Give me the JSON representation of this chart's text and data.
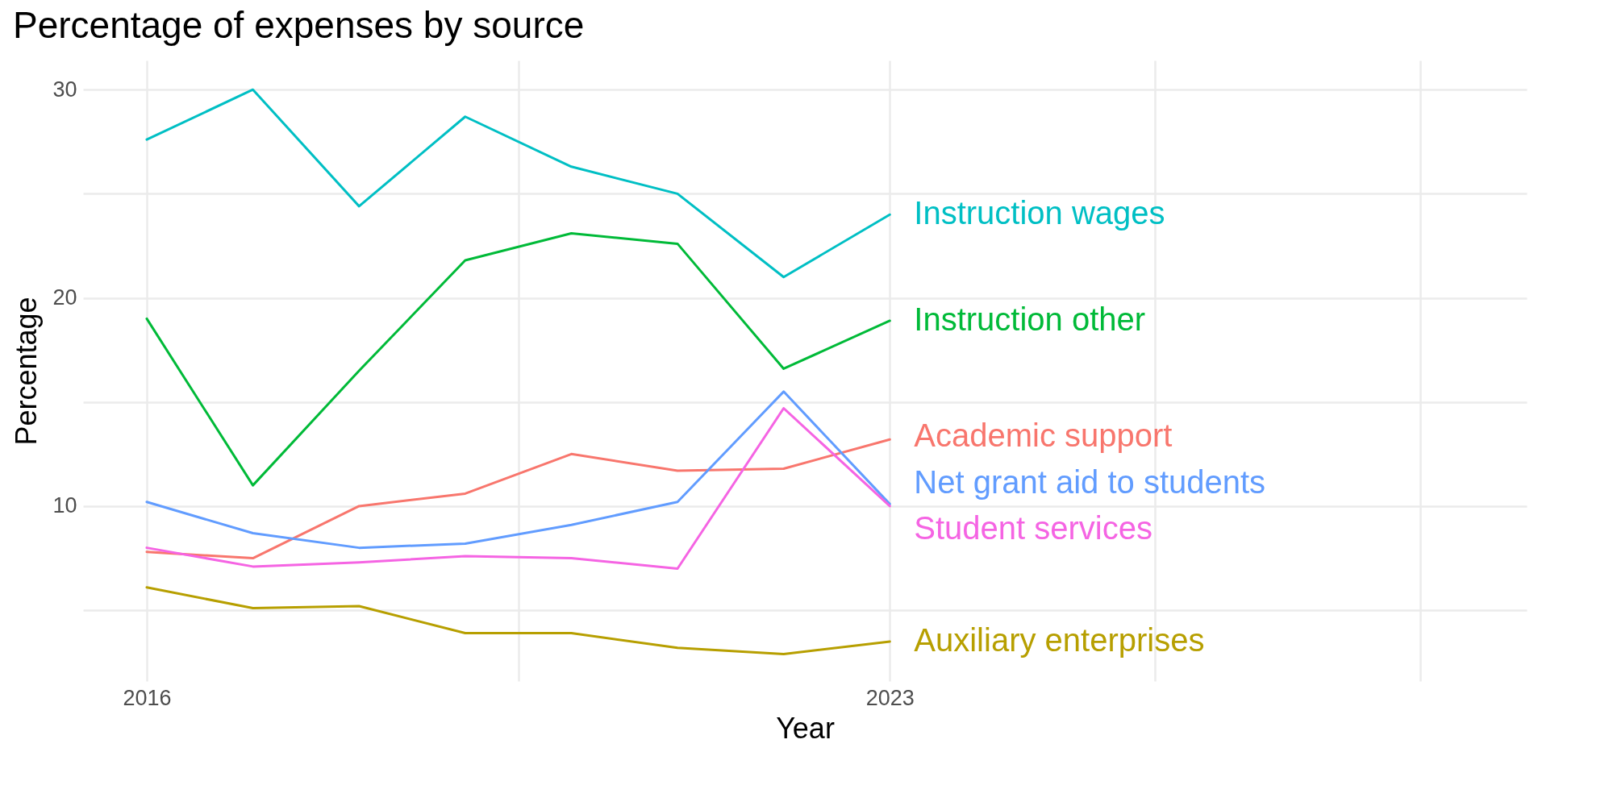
{
  "chart_data": {
    "type": "line",
    "title": "Percentage of expenses by source",
    "xlabel": "Year",
    "ylabel": "Percentage",
    "x": [
      2016,
      2017,
      2018,
      2019,
      2020,
      2021,
      2022,
      2023
    ],
    "series": [
      {
        "name": "Academic support",
        "color": "#f8766d",
        "values": [
          7.8,
          7.5,
          10.0,
          10.6,
          12.5,
          11.7,
          11.8,
          13.2
        ]
      },
      {
        "name": "Auxiliary enterprises",
        "color": "#b79f00",
        "values": [
          6.1,
          5.1,
          5.2,
          3.9,
          3.9,
          3.2,
          2.9,
          3.5
        ]
      },
      {
        "name": "Instruction other",
        "color": "#00ba38",
        "values": [
          19.0,
          11.0,
          16.5,
          21.8,
          23.1,
          22.6,
          16.6,
          18.9
        ]
      },
      {
        "name": "Instruction wages",
        "color": "#00bfc4",
        "values": [
          27.6,
          30.0,
          24.4,
          28.7,
          26.3,
          25.0,
          21.0,
          24.0
        ]
      },
      {
        "name": "Net grant aid to students",
        "color": "#619cff",
        "values": [
          10.2,
          8.7,
          8.0,
          8.2,
          9.1,
          10.2,
          15.5,
          10.1
        ]
      },
      {
        "name": "Student services",
        "color": "#f564e3",
        "values": [
          8.0,
          7.1,
          7.3,
          7.6,
          7.5,
          7.0,
          14.7,
          10.0
        ]
      }
    ],
    "xlim": [
      2015.4,
      2029
    ],
    "xticks": [
      2016,
      {
        "value": 2019.5,
        "label": null
      },
      2023,
      {
        "value": 2025.5,
        "label": null
      },
      {
        "value": 2028,
        "label": null
      }
    ],
    "ylim": [
      1.6,
      31.4
    ],
    "yticks": [
      {
        "value": 5,
        "label": null
      },
      10,
      {
        "value": 15,
        "label": null
      },
      20,
      {
        "value": 25,
        "label": null
      },
      30
    ],
    "grid": true,
    "legend": false,
    "marker": "none",
    "line_style": "solid"
  }
}
